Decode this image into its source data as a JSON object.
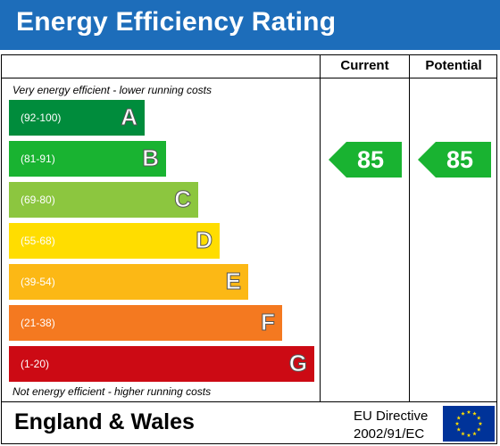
{
  "header": {
    "title": "Energy Efficiency Rating"
  },
  "columns": {
    "current": "Current",
    "potential": "Potential"
  },
  "notes": {
    "top": "Very energy efficient - lower running costs",
    "bottom": "Not energy efficient - higher running costs"
  },
  "footer": {
    "region": "England & Wales",
    "directive_line1": "EU Directive",
    "directive_line2": "2002/91/EC"
  },
  "chart_data": {
    "type": "bar",
    "title": "Energy Efficiency Rating",
    "categories": [
      "A",
      "B",
      "C",
      "D",
      "E",
      "F",
      "G"
    ],
    "ranges": [
      "(92-100)",
      "(81-91)",
      "(69-80)",
      "(55-68)",
      "(39-54)",
      "(21-38)",
      "(1-20)"
    ],
    "colors": [
      "#008c3c",
      "#19b331",
      "#8cc63f",
      "#ffdd00",
      "#fcb815",
      "#f47920",
      "#cc0a14"
    ],
    "series": [
      {
        "name": "Current",
        "value": 85,
        "band": "B",
        "color": "#19b331"
      },
      {
        "name": "Potential",
        "value": 85,
        "band": "B",
        "color": "#19b331"
      }
    ]
  }
}
